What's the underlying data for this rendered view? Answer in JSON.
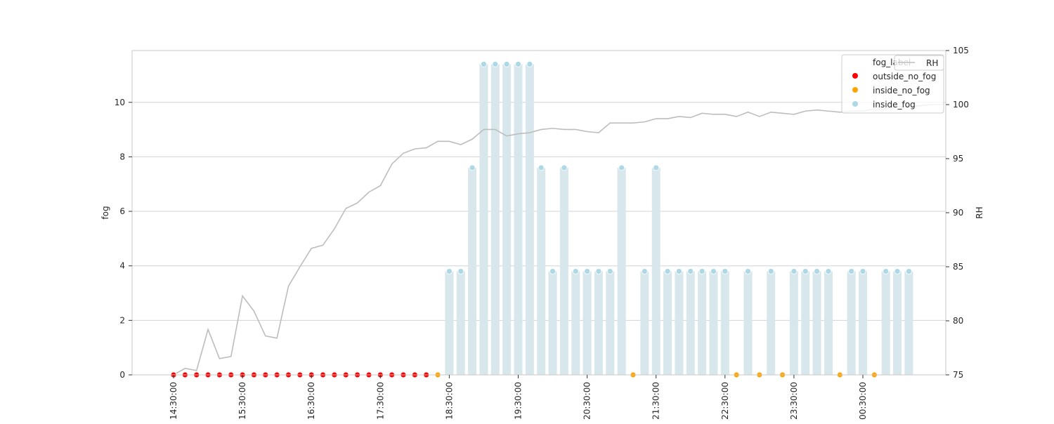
{
  "chart_data": {
    "type": "bar",
    "title": "",
    "xlabel": "",
    "ylabel": "fog",
    "y2label": "RH",
    "ylim": [
      0,
      11.9
    ],
    "y2lim": [
      75,
      105
    ],
    "yticks": [
      0,
      2,
      4,
      6,
      8,
      10
    ],
    "y2ticks": [
      75,
      80,
      85,
      90,
      95,
      100,
      105
    ],
    "grid": true,
    "legend_position": "top-right",
    "x_ticklabels": [
      "14:30:00",
      "15:30:00",
      "16:30:00",
      "17:30:00",
      "18:30:00",
      "19:30:00",
      "20:30:00",
      "21:30:00",
      "22:30:00",
      "23:30:00",
      "00:30:00"
    ],
    "x_tick_index": [
      0,
      6,
      12,
      18,
      24,
      30,
      36,
      42,
      48,
      54,
      60
    ],
    "times": [
      "14:30",
      "14:40",
      "14:50",
      "15:00",
      "15:10",
      "15:20",
      "15:30",
      "15:40",
      "15:50",
      "16:00",
      "16:10",
      "16:20",
      "16:30",
      "16:40",
      "16:50",
      "17:00",
      "17:10",
      "17:20",
      "17:30",
      "17:40",
      "17:50",
      "18:00",
      "18:10",
      "18:20",
      "18:30",
      "18:40",
      "18:50",
      "19:00",
      "19:10",
      "19:20",
      "19:30",
      "19:40",
      "19:50",
      "20:00",
      "20:10",
      "20:20",
      "20:30",
      "20:40",
      "20:50",
      "21:00",
      "21:10",
      "21:20",
      "21:30",
      "21:40",
      "21:50",
      "22:00",
      "22:10",
      "22:20",
      "22:30",
      "22:40",
      "22:50",
      "23:00",
      "23:10",
      "23:20",
      "23:30",
      "23:40",
      "23:50",
      "00:00",
      "00:10",
      "00:20",
      "00:30",
      "00:40",
      "00:50",
      "01:00",
      "01:10"
    ],
    "fog": [
      0,
      0,
      0,
      0,
      0,
      0,
      0,
      0,
      0,
      0,
      0,
      0,
      0,
      0,
      0,
      0,
      0,
      0,
      0,
      0,
      0,
      0,
      0,
      0,
      3.8,
      3.8,
      7.6,
      11.4,
      11.4,
      11.4,
      11.4,
      11.4,
      7.6,
      3.8,
      7.6,
      3.8,
      3.8,
      3.8,
      3.8,
      7.6,
      0,
      3.8,
      7.6,
      3.8,
      3.8,
      3.8,
      3.8,
      3.8,
      3.8,
      0,
      3.8,
      0,
      3.8,
      0,
      3.8,
      3.8,
      3.8,
      3.8,
      0,
      3.8,
      3.8,
      0,
      3.8,
      3.8,
      3.8
    ],
    "fog_label": [
      "outside_no_fog",
      "outside_no_fog",
      "outside_no_fog",
      "outside_no_fog",
      "outside_no_fog",
      "outside_no_fog",
      "outside_no_fog",
      "outside_no_fog",
      "outside_no_fog",
      "outside_no_fog",
      "outside_no_fog",
      "outside_no_fog",
      "outside_no_fog",
      "outside_no_fog",
      "outside_no_fog",
      "outside_no_fog",
      "outside_no_fog",
      "outside_no_fog",
      "outside_no_fog",
      "outside_no_fog",
      "outside_no_fog",
      "outside_no_fog",
      "outside_no_fog",
      "inside_no_fog",
      "inside_fog",
      "inside_fog",
      "inside_fog",
      "inside_fog",
      "inside_fog",
      "inside_fog",
      "inside_fog",
      "inside_fog",
      "inside_fog",
      "inside_fog",
      "inside_fog",
      "inside_fog",
      "inside_fog",
      "inside_fog",
      "inside_fog",
      "inside_fog",
      "inside_no_fog",
      "inside_fog",
      "inside_fog",
      "inside_fog",
      "inside_fog",
      "inside_fog",
      "inside_fog",
      "inside_fog",
      "inside_fog",
      "inside_no_fog",
      "inside_fog",
      "inside_no_fog",
      "inside_fog",
      "inside_no_fog",
      "inside_fog",
      "inside_fog",
      "inside_fog",
      "inside_fog",
      "inside_no_fog",
      "inside_fog",
      "inside_fog",
      "inside_no_fog",
      "inside_fog",
      "inside_fog",
      "inside_fog"
    ],
    "rh_times": [
      "14:30",
      "14:40",
      "14:50",
      "15:00",
      "15:10",
      "15:20",
      "15:30",
      "15:40",
      "15:50",
      "16:00",
      "16:10",
      "16:20",
      "16:30",
      "16:40",
      "16:50",
      "17:00",
      "17:10",
      "17:20",
      "17:30",
      "17:40",
      "17:50",
      "18:00",
      "18:10",
      "18:20",
      "18:30",
      "18:40",
      "18:50",
      "19:00",
      "19:10",
      "19:20",
      "19:30",
      "19:40",
      "19:50",
      "20:00",
      "20:10",
      "20:20",
      "20:30",
      "20:40",
      "20:50",
      "21:00",
      "21:10",
      "21:20",
      "21:30",
      "21:40",
      "21:50",
      "22:00",
      "22:10",
      "22:20",
      "22:30",
      "22:40",
      "22:50",
      "23:00",
      "23:10",
      "23:20",
      "23:30",
      "23:40",
      "23:50",
      "00:00",
      "00:10",
      "00:20",
      "00:30",
      "00:40",
      "00:50",
      "01:00",
      "01:10",
      "01:20",
      "01:30",
      "01:40"
    ],
    "rh": [
      75.0,
      75.6,
      75.4,
      79.2,
      76.5,
      76.7,
      82.3,
      80.9,
      78.6,
      78.4,
      83.2,
      85.0,
      86.7,
      87.0,
      88.5,
      90.4,
      90.9,
      91.9,
      92.5,
      94.5,
      95.5,
      95.9,
      96.0,
      96.6,
      96.6,
      96.3,
      96.8,
      97.7,
      97.7,
      97.1,
      97.3,
      97.4,
      97.7,
      97.8,
      97.7,
      97.7,
      97.5,
      97.4,
      98.3,
      98.3,
      98.3,
      98.4,
      98.7,
      98.7,
      98.9,
      98.8,
      99.2,
      99.1,
      99.1,
      98.9,
      99.3,
      98.9,
      99.3,
      99.2,
      99.1,
      99.4,
      99.5,
      99.4,
      99.3,
      99.4,
      99.4,
      99.6,
      99.6,
      99.8,
      99.8,
      99.9,
      100.0,
      100.0
    ],
    "series": [
      {
        "name": "fog_label",
        "values": []
      },
      {
        "name": "outside_no_fog",
        "values": []
      },
      {
        "name": "inside_no_fog",
        "values": []
      },
      {
        "name": "inside_fog",
        "values": []
      },
      {
        "name": "RH",
        "values": []
      }
    ],
    "legend": {
      "title": "fog_label",
      "entries": [
        {
          "label": "outside_no_fog",
          "color": "#ff0000"
        },
        {
          "label": "inside_no_fog",
          "color": "#ffa500"
        },
        {
          "label": "inside_fog",
          "color": "#add8e6"
        }
      ],
      "rh_label": "RH"
    },
    "colors": {
      "outside_no_fog": "#ff0000",
      "inside_no_fog": "#ffa500",
      "inside_fog": "#add8e6",
      "bar": "#d8e7ec",
      "rh_line": "#bdbdbd",
      "grid": "#d3d3d3",
      "axis": "#c8c8c8"
    }
  }
}
